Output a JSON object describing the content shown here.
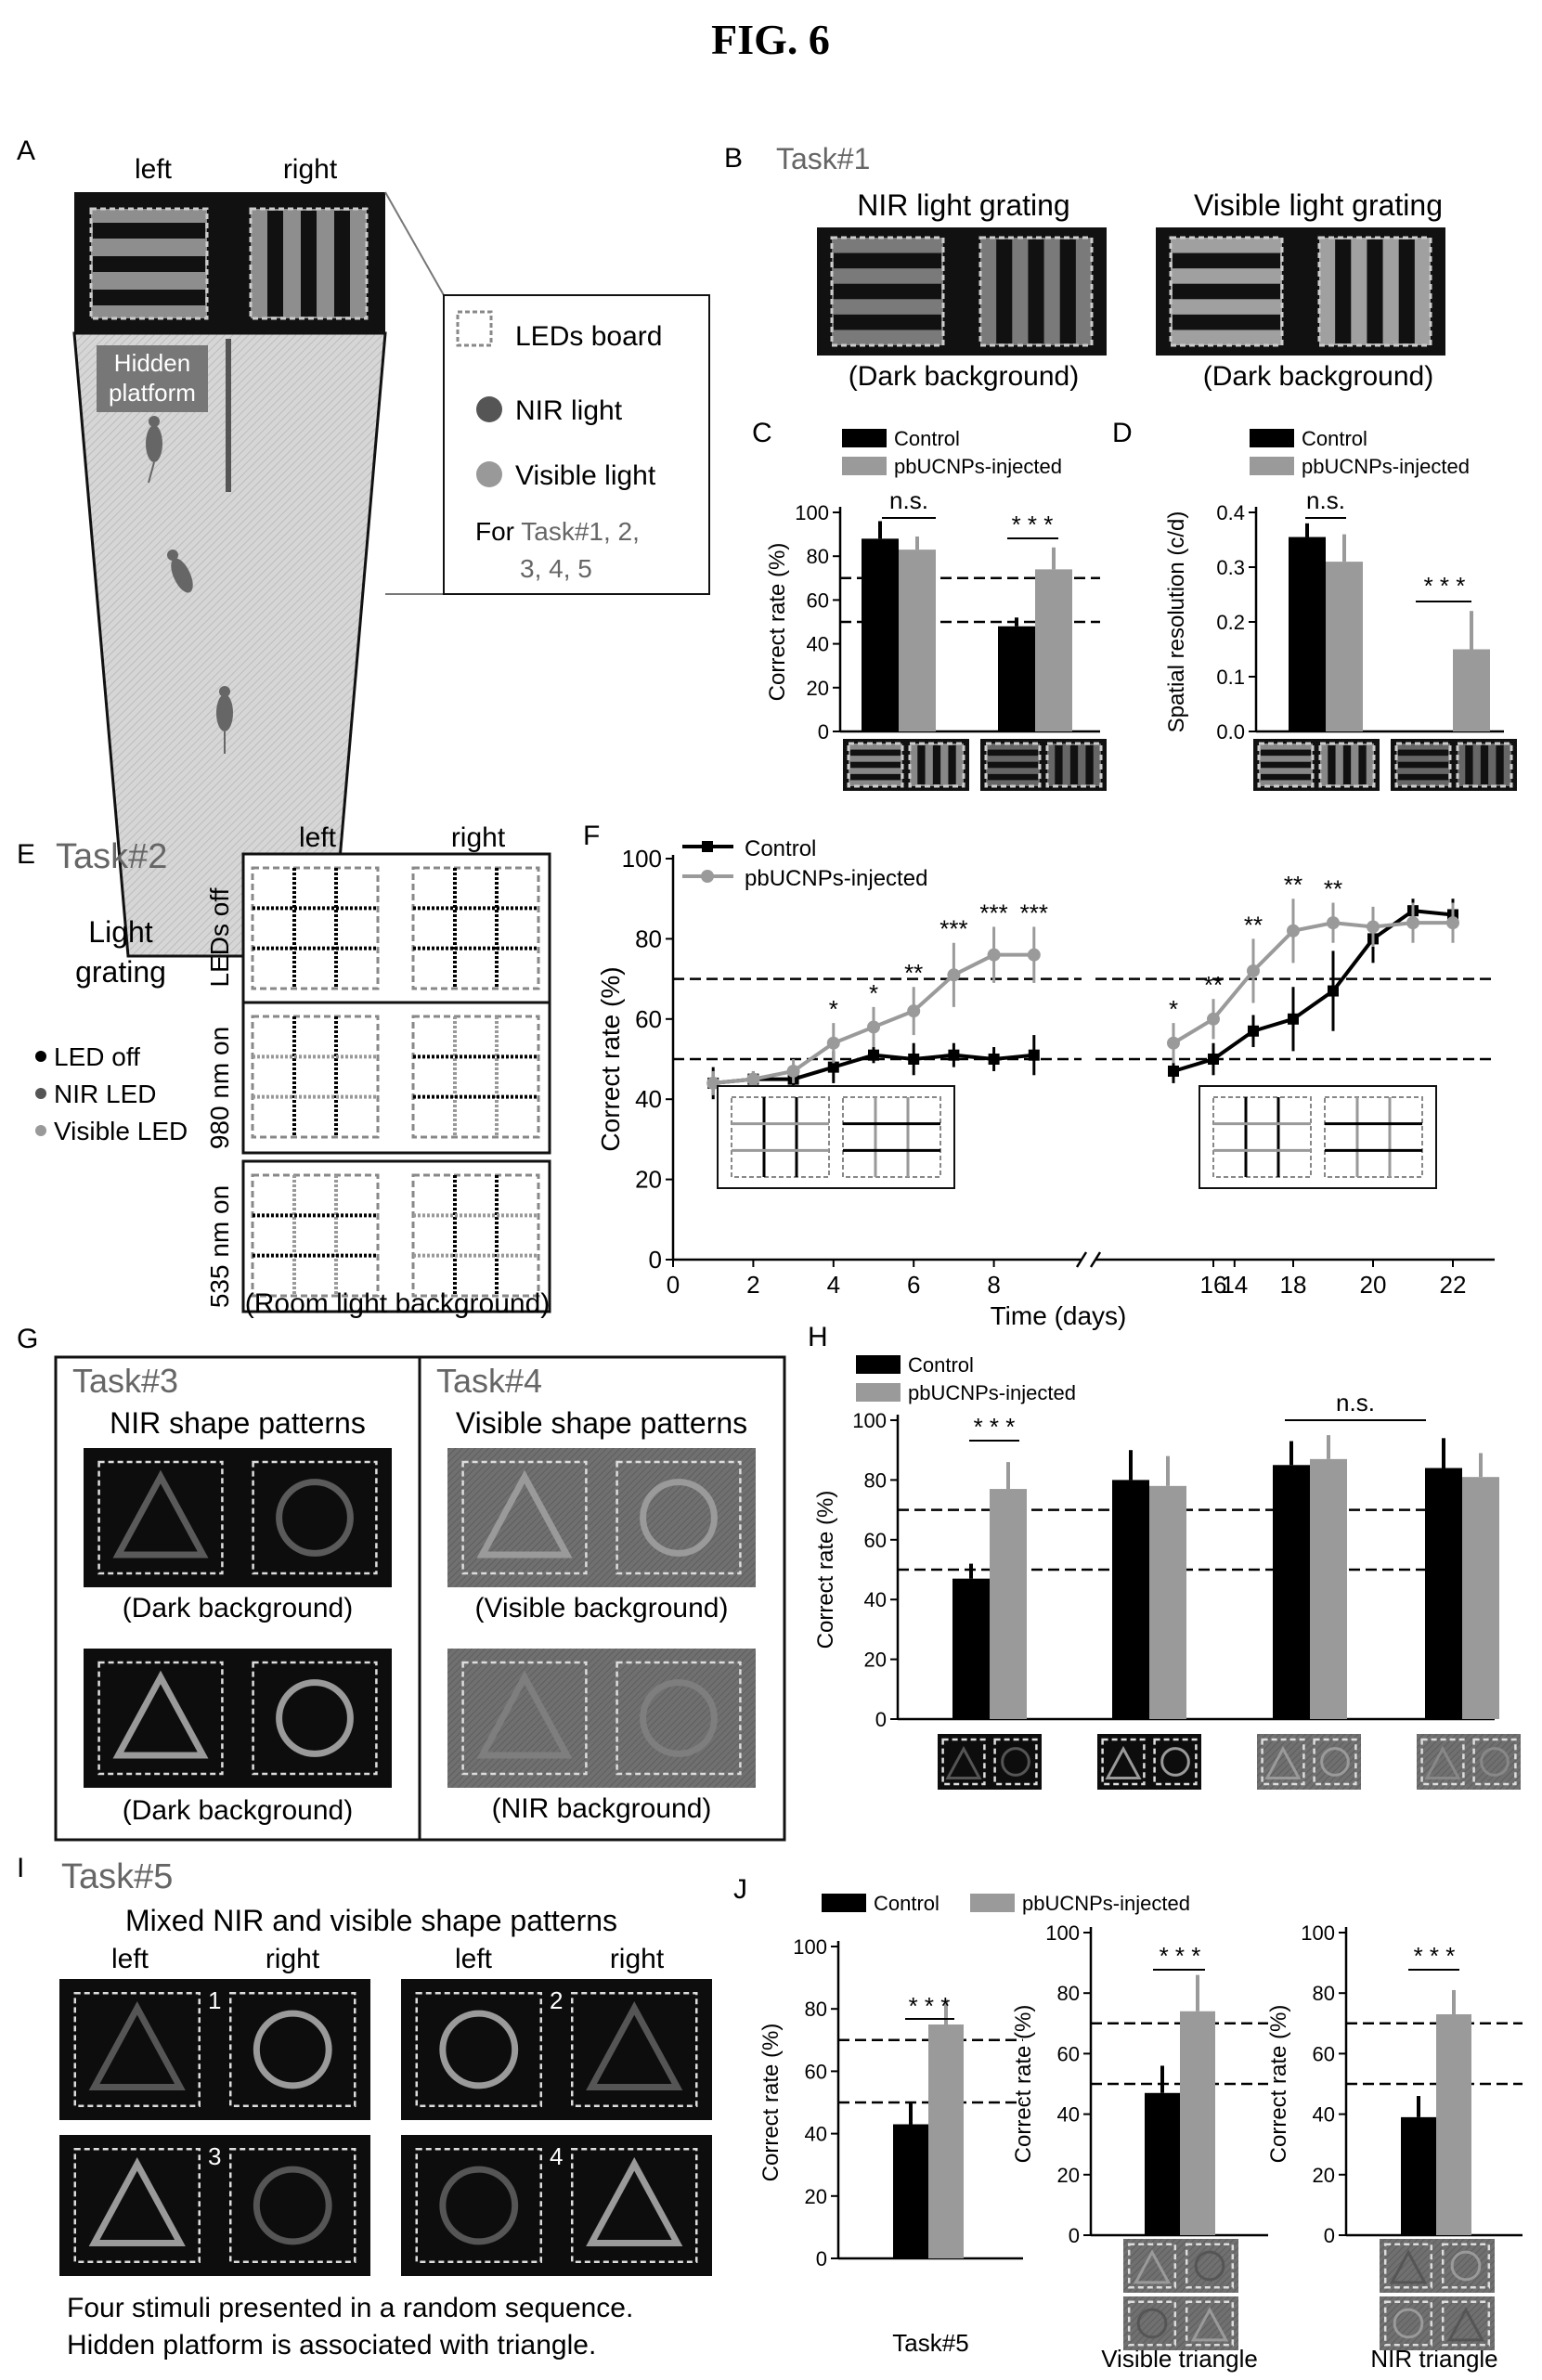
{
  "figure_title": "FIG. 6",
  "colors": {
    "control": "#000000",
    "treated": "#9a9a9a",
    "nir": "#555555",
    "visible": "#9a9a9a",
    "led_board": "#888888"
  },
  "panels": {
    "A": {
      "letter": "A",
      "left": "left",
      "right": "right",
      "platform": [
        "Hidden",
        "platform"
      ],
      "legend": {
        "leds": "LEDs board",
        "nir": "NIR light",
        "visible": "Visible light",
        "for_prefix": "For ",
        "for_tasks": "Task#1, 2,",
        "for_tasks2": "3, 4, 5"
      }
    },
    "B": {
      "letter": "B",
      "task": "Task#1",
      "nir_title": "NIR light grating",
      "vis_title": "Visible light grating",
      "bg": "(Dark background)"
    },
    "E": {
      "letter": "E",
      "task": "Task#2",
      "light": "Light",
      "grating": "grating",
      "left": "left",
      "right": "right",
      "rows": [
        "LEDs off",
        "980 nm on",
        "535 nm on"
      ],
      "bg": "(Room light background)",
      "legend": [
        "LED off",
        "NIR LED",
        "Visible LED"
      ]
    },
    "G": {
      "letter": "G",
      "task3": "Task#3",
      "task4": "Task#4",
      "nir_shapes": "NIR shape patterns",
      "vis_shapes": "Visible shape patterns",
      "dark_bg": "(Dark background)",
      "vis_bg": "(Visible background)",
      "nir_bg": "(NIR background)"
    },
    "I": {
      "letter": "I",
      "task": "Task#5",
      "subtitle": "Mixed NIR and visible shape patterns",
      "left": "left",
      "right": "right",
      "nums": [
        "1",
        "2",
        "3",
        "4"
      ],
      "caption1": "Four stimuli presented in a random sequence.",
      "caption2": "Hidden platform is associated with triangle."
    }
  },
  "chart_data": [
    {
      "id": "C",
      "letter": "C",
      "type": "bar",
      "ylabel": "Correct rate (%)",
      "ylim": [
        0,
        100
      ],
      "yticks": [
        "0",
        "20",
        "40",
        "60",
        "80",
        "100"
      ],
      "ref_lines": [
        50,
        70
      ],
      "legend": [
        "Control",
        "pbUCNPs-injected"
      ],
      "series": [
        {
          "name": "Control",
          "values": [
            88,
            48
          ],
          "errors": [
            8,
            4
          ]
        },
        {
          "name": "pbUCNPs-injected",
          "values": [
            83,
            74
          ],
          "errors": [
            6,
            10
          ]
        }
      ],
      "sig": [
        "n.s.",
        "* * *"
      ]
    },
    {
      "id": "D",
      "letter": "D",
      "type": "bar",
      "ylabel": "Spatial resolution (c/d)",
      "ylim": [
        0,
        0.4
      ],
      "yticks": [
        "0.0",
        "0.1",
        "0.2",
        "0.3",
        "0.4"
      ],
      "legend": [
        "Control",
        "pbUCNPs-injected"
      ],
      "series": [
        {
          "name": "Control",
          "values": [
            0.355,
            0.0
          ],
          "errors": [
            0.025,
            0
          ]
        },
        {
          "name": "pbUCNPs-injected",
          "values": [
            0.31,
            0.15
          ],
          "errors": [
            0.05,
            0.07
          ]
        }
      ],
      "sig": [
        "n.s.",
        "* * *"
      ]
    },
    {
      "id": "F",
      "letter": "F",
      "type": "line",
      "xlabel": "Time (days)",
      "ylabel": "Correct rate (%)",
      "ylim": [
        0,
        100
      ],
      "yticks": [
        "0",
        "20",
        "40",
        "60",
        "80",
        "100"
      ],
      "xticks": [
        "0",
        "2",
        "4",
        "6",
        "8",
        "14",
        "16",
        "18",
        "20",
        "22"
      ],
      "ref_lines": [
        50,
        70
      ],
      "legend": [
        "Control",
        "pbUCNPs-injected"
      ],
      "series": [
        {
          "name": "Control",
          "x": [
            1,
            2,
            3,
            4,
            5,
            6,
            7,
            8,
            9,
            15,
            16,
            17,
            18,
            19,
            20,
            21,
            22
          ],
          "values": [
            44,
            45,
            45,
            48,
            51,
            50,
            51,
            50,
            51,
            47,
            50,
            57,
            60,
            67,
            80,
            87,
            86
          ],
          "errors": [
            4,
            2,
            3,
            4,
            2,
            4,
            3,
            3,
            5,
            3,
            4,
            4,
            8,
            10,
            6,
            3,
            4
          ]
        },
        {
          "name": "pbUCNPs-injected",
          "x": [
            1,
            2,
            3,
            4,
            5,
            6,
            7,
            8,
            9,
            15,
            16,
            17,
            18,
            19,
            20,
            21,
            22
          ],
          "values": [
            44,
            45,
            47,
            54,
            58,
            62,
            71,
            76,
            76,
            54,
            60,
            72,
            82,
            84,
            83,
            84,
            84
          ],
          "errors": [
            3,
            2,
            3,
            5,
            5,
            6,
            8,
            7,
            7,
            5,
            5,
            8,
            8,
            5,
            5,
            5,
            5
          ]
        }
      ],
      "stars": [
        {
          "x": 4,
          "t": "*"
        },
        {
          "x": 5,
          "t": "*"
        },
        {
          "x": 6,
          "t": "**"
        },
        {
          "x": 7,
          "t": "***"
        },
        {
          "x": 8,
          "t": "***"
        },
        {
          "x": 9,
          "t": "***"
        },
        {
          "x": 15,
          "t": "*"
        },
        {
          "x": 16,
          "t": "**"
        },
        {
          "x": 17,
          "t": "**"
        },
        {
          "x": 18,
          "t": "**"
        },
        {
          "x": 19,
          "t": "**"
        }
      ]
    },
    {
      "id": "H",
      "letter": "H",
      "type": "bar",
      "ylabel": "Correct rate (%)",
      "ylim": [
        0,
        100
      ],
      "yticks": [
        "0",
        "20",
        "40",
        "60",
        "80",
        "100"
      ],
      "ref_lines": [
        50,
        70
      ],
      "legend": [
        "Control",
        "pbUCNPs-injected"
      ],
      "series": [
        {
          "name": "Control",
          "values": [
            47,
            80,
            85,
            84
          ],
          "errors": [
            5,
            10,
            8,
            10
          ]
        },
        {
          "name": "pbUCNPs-injected",
          "values": [
            77,
            78,
            87,
            81
          ],
          "errors": [
            9,
            10,
            8,
            8
          ]
        }
      ],
      "sig": [
        "* * *",
        "n.s."
      ]
    },
    {
      "id": "J1",
      "letter": "J",
      "type": "bar",
      "xlabel": "Task#5",
      "ylabel": "Correct rate (%)",
      "ylim": [
        0,
        100
      ],
      "yticks": [
        "0",
        "20",
        "40",
        "60",
        "80",
        "100"
      ],
      "ref_lines": [
        50,
        70
      ],
      "legend": [
        "Control",
        "pbUCNPs-injected"
      ],
      "series": [
        {
          "name": "Control",
          "values": [
            43
          ],
          "errors": [
            7
          ]
        },
        {
          "name": "pbUCNPs-injected",
          "values": [
            75
          ],
          "errors": [
            8
          ]
        }
      ],
      "sig": [
        "* * *"
      ]
    },
    {
      "id": "J2",
      "type": "bar",
      "xlabel": "Visible triangle",
      "ylabel": "Correct rate (%)",
      "ylim": [
        0,
        100
      ],
      "yticks": [
        "0",
        "20",
        "40",
        "60",
        "80",
        "100"
      ],
      "ref_lines": [
        50,
        70
      ],
      "series": [
        {
          "name": "Control",
          "values": [
            47
          ],
          "errors": [
            9
          ]
        },
        {
          "name": "pbUCNPs-injected",
          "values": [
            74
          ],
          "errors": [
            12
          ]
        }
      ],
      "sig": [
        "* * *"
      ]
    },
    {
      "id": "J3",
      "type": "bar",
      "xlabel": "NIR triangle",
      "ylabel": "Correct rate (%)",
      "ylim": [
        0,
        100
      ],
      "yticks": [
        "0",
        "20",
        "40",
        "60",
        "80",
        "100"
      ],
      "ref_lines": [
        50,
        70
      ],
      "series": [
        {
          "name": "Control",
          "values": [
            39
          ],
          "errors": [
            7
          ]
        },
        {
          "name": "pbUCNPs-injected",
          "values": [
            73
          ],
          "errors": [
            8
          ]
        }
      ],
      "sig": [
        "* * *"
      ]
    }
  ]
}
